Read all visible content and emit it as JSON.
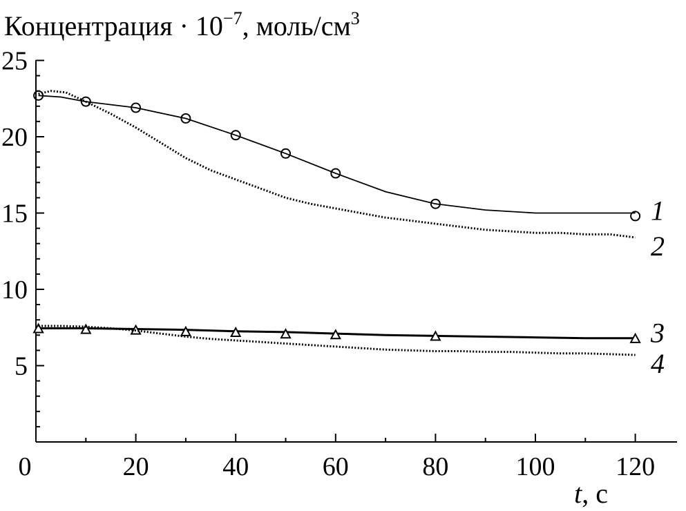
{
  "chart_data": {
    "type": "line",
    "title": "",
    "ylabel": {
      "base": "Концентрация · 10",
      "exponent": "−7",
      "unit": ", моль/см",
      "unit_exponent": "3"
    },
    "xlabel": {
      "var": "t",
      "unit": ", с"
    },
    "xlim": [
      0,
      130
    ],
    "ylim": [
      0,
      25
    ],
    "x_ticks": [
      0,
      20,
      40,
      60,
      80,
      100,
      120
    ],
    "y_ticks": [
      5,
      10,
      15,
      20,
      25
    ],
    "grid": false,
    "series": [
      {
        "name": "1",
        "style": "solid",
        "marker": "circle",
        "x": [
          0.5,
          10,
          20,
          30,
          40,
          50,
          60,
          80,
          120
        ],
        "y": [
          22.7,
          22.3,
          21.9,
          21.2,
          20.1,
          18.9,
          17.6,
          15.6,
          14.8
        ],
        "curve_x": [
          0.5,
          5,
          10,
          20,
          30,
          40,
          50,
          60,
          70,
          80,
          90,
          100,
          110,
          120
        ],
        "curve_y": [
          22.7,
          22.6,
          22.3,
          21.9,
          21.2,
          20.1,
          18.9,
          17.6,
          16.4,
          15.6,
          15.2,
          15.0,
          15.0,
          15.0
        ]
      },
      {
        "name": "2",
        "style": "dotted",
        "marker": "none",
        "curve_x": [
          0.5,
          3,
          6,
          10,
          15,
          20,
          25,
          30,
          35,
          40,
          45,
          50,
          55,
          60,
          65,
          70,
          75,
          80,
          85,
          90,
          95,
          100,
          105,
          110,
          115,
          120
        ],
        "curve_y": [
          22.8,
          23.0,
          22.9,
          22.3,
          21.5,
          20.6,
          19.6,
          18.6,
          17.8,
          17.2,
          16.6,
          16.0,
          15.6,
          15.3,
          15.0,
          14.7,
          14.5,
          14.3,
          14.1,
          13.9,
          13.8,
          13.7,
          13.7,
          13.6,
          13.6,
          13.4
        ]
      },
      {
        "name": "3",
        "style": "solid-bold",
        "marker": "triangle",
        "x": [
          0.5,
          10,
          20,
          30,
          40,
          50,
          60,
          80,
          120
        ],
        "y": [
          7.4,
          7.35,
          7.3,
          7.2,
          7.15,
          7.05,
          7.0,
          6.9,
          6.75
        ],
        "curve_x": [
          0.5,
          10,
          20,
          30,
          40,
          50,
          60,
          70,
          80,
          90,
          100,
          110,
          120
        ],
        "curve_y": [
          7.45,
          7.45,
          7.4,
          7.35,
          7.25,
          7.2,
          7.1,
          7.0,
          6.95,
          6.9,
          6.85,
          6.8,
          6.8
        ]
      },
      {
        "name": "4",
        "style": "dotted",
        "marker": "none",
        "curve_x": [
          0.5,
          5,
          10,
          15,
          20,
          25,
          30,
          35,
          40,
          45,
          50,
          55,
          60,
          65,
          70,
          75,
          80,
          85,
          90,
          95,
          100,
          105,
          110,
          115,
          120
        ],
        "curve_y": [
          7.6,
          7.6,
          7.55,
          7.45,
          7.3,
          7.1,
          6.9,
          6.75,
          6.65,
          6.55,
          6.45,
          6.35,
          6.25,
          6.15,
          6.05,
          6.0,
          5.95,
          5.95,
          5.9,
          5.9,
          5.85,
          5.8,
          5.8,
          5.75,
          5.7
        ]
      }
    ]
  }
}
